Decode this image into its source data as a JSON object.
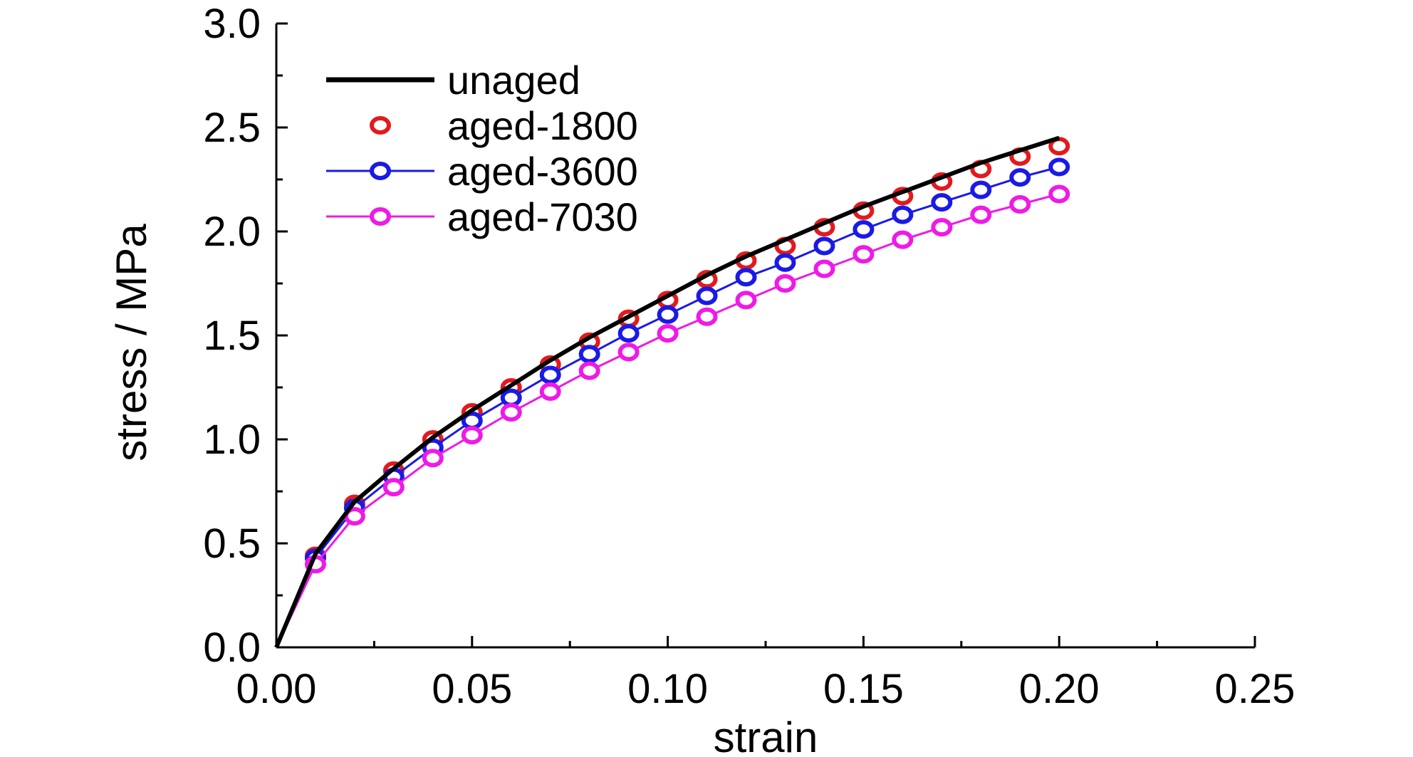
{
  "chart_data": {
    "type": "line",
    "xlabel": "strain",
    "ylabel": "stress / MPa",
    "xlim": [
      0,
      0.25
    ],
    "ylim": [
      0,
      3.0
    ],
    "x_ticks": [
      0.0,
      0.05,
      0.1,
      0.15,
      0.2,
      0.25
    ],
    "x_tick_labels": [
      "0.00",
      "0.05",
      "0.10",
      "0.15",
      "0.20",
      "0.25"
    ],
    "y_ticks": [
      0.0,
      0.5,
      1.0,
      1.5,
      2.0,
      2.5,
      3.0
    ],
    "y_tick_labels": [
      "0.0",
      "0.5",
      "1.0",
      "1.5",
      "2.0",
      "2.5",
      "3.0"
    ],
    "grid": false,
    "legend_position": "top-left",
    "series": [
      {
        "name": "unaged",
        "color": "#000000",
        "style": "line",
        "x": [
          0,
          0.01,
          0.02,
          0.03,
          0.04,
          0.05,
          0.06,
          0.07,
          0.08,
          0.09,
          0.1,
          0.11,
          0.12,
          0.13,
          0.14,
          0.15,
          0.16,
          0.17,
          0.18,
          0.19,
          0.2
        ],
        "values": [
          0.0,
          0.45,
          0.7,
          0.86,
          1.01,
          1.14,
          1.26,
          1.38,
          1.49,
          1.59,
          1.69,
          1.79,
          1.88,
          1.96,
          2.04,
          2.12,
          2.19,
          2.26,
          2.33,
          2.39,
          2.45
        ]
      },
      {
        "name": "aged-1800",
        "color": "#e31a1c",
        "style": "markers",
        "x": [
          0,
          0.01,
          0.02,
          0.03,
          0.04,
          0.05,
          0.06,
          0.07,
          0.08,
          0.09,
          0.1,
          0.11,
          0.12,
          0.13,
          0.14,
          0.15,
          0.16,
          0.17,
          0.18,
          0.19,
          0.2
        ],
        "values": [
          0.0,
          0.44,
          0.69,
          0.85,
          1.0,
          1.13,
          1.25,
          1.36,
          1.47,
          1.58,
          1.67,
          1.77,
          1.86,
          1.93,
          2.02,
          2.1,
          2.17,
          2.24,
          2.3,
          2.36,
          2.41
        ]
      },
      {
        "name": "aged-3600",
        "color": "#1a1ae6",
        "style": "line-markers",
        "x": [
          0,
          0.01,
          0.02,
          0.03,
          0.04,
          0.05,
          0.06,
          0.07,
          0.08,
          0.09,
          0.1,
          0.11,
          0.12,
          0.13,
          0.14,
          0.15,
          0.16,
          0.17,
          0.18,
          0.19,
          0.2
        ],
        "values": [
          0.0,
          0.43,
          0.67,
          0.82,
          0.96,
          1.09,
          1.2,
          1.31,
          1.41,
          1.51,
          1.6,
          1.69,
          1.78,
          1.85,
          1.93,
          2.01,
          2.08,
          2.14,
          2.2,
          2.26,
          2.31
        ]
      },
      {
        "name": "aged-7030",
        "color": "#ee1ae6",
        "style": "line-markers",
        "x": [
          0,
          0.01,
          0.02,
          0.03,
          0.04,
          0.05,
          0.06,
          0.07,
          0.08,
          0.09,
          0.1,
          0.11,
          0.12,
          0.13,
          0.14,
          0.15,
          0.16,
          0.17,
          0.18,
          0.19,
          0.2
        ],
        "values": [
          0.0,
          0.4,
          0.63,
          0.77,
          0.91,
          1.02,
          1.13,
          1.23,
          1.33,
          1.42,
          1.51,
          1.59,
          1.67,
          1.75,
          1.82,
          1.89,
          1.96,
          2.02,
          2.08,
          2.13,
          2.18
        ]
      }
    ]
  }
}
